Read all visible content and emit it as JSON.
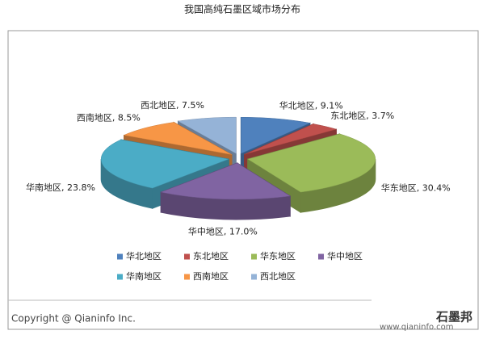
{
  "chart_data": {
    "type": "pie3d",
    "title": "我国高纯石墨区域市场分布",
    "categories": [
      "华北地区",
      "东北地区",
      "华东地区",
      "华中地区",
      "华南地区",
      "西南地区",
      "西北地区"
    ],
    "values": [
      9.1,
      3.7,
      30.4,
      17.0,
      23.8,
      8.5,
      7.5
    ],
    "value_labels": [
      "华北地区, 9.1%",
      "东北地区, 3.7%",
      "华东地区, 30.4%",
      "华中地区, 17.0%",
      "华南地区, 23.8%",
      "西南地区, 8.5%",
      "西北地区, 7.5%"
    ],
    "colors": [
      "#4f81bd",
      "#c0504d",
      "#9bbb59",
      "#8064a2",
      "#4bacc6",
      "#f79646",
      "#95b3d7"
    ],
    "legend": "bottom"
  },
  "footer": {
    "copyright": "Copyright @ Qianinfo Inc.",
    "watermark": "石墨邦",
    "url": "www.qianinfo.com"
  }
}
